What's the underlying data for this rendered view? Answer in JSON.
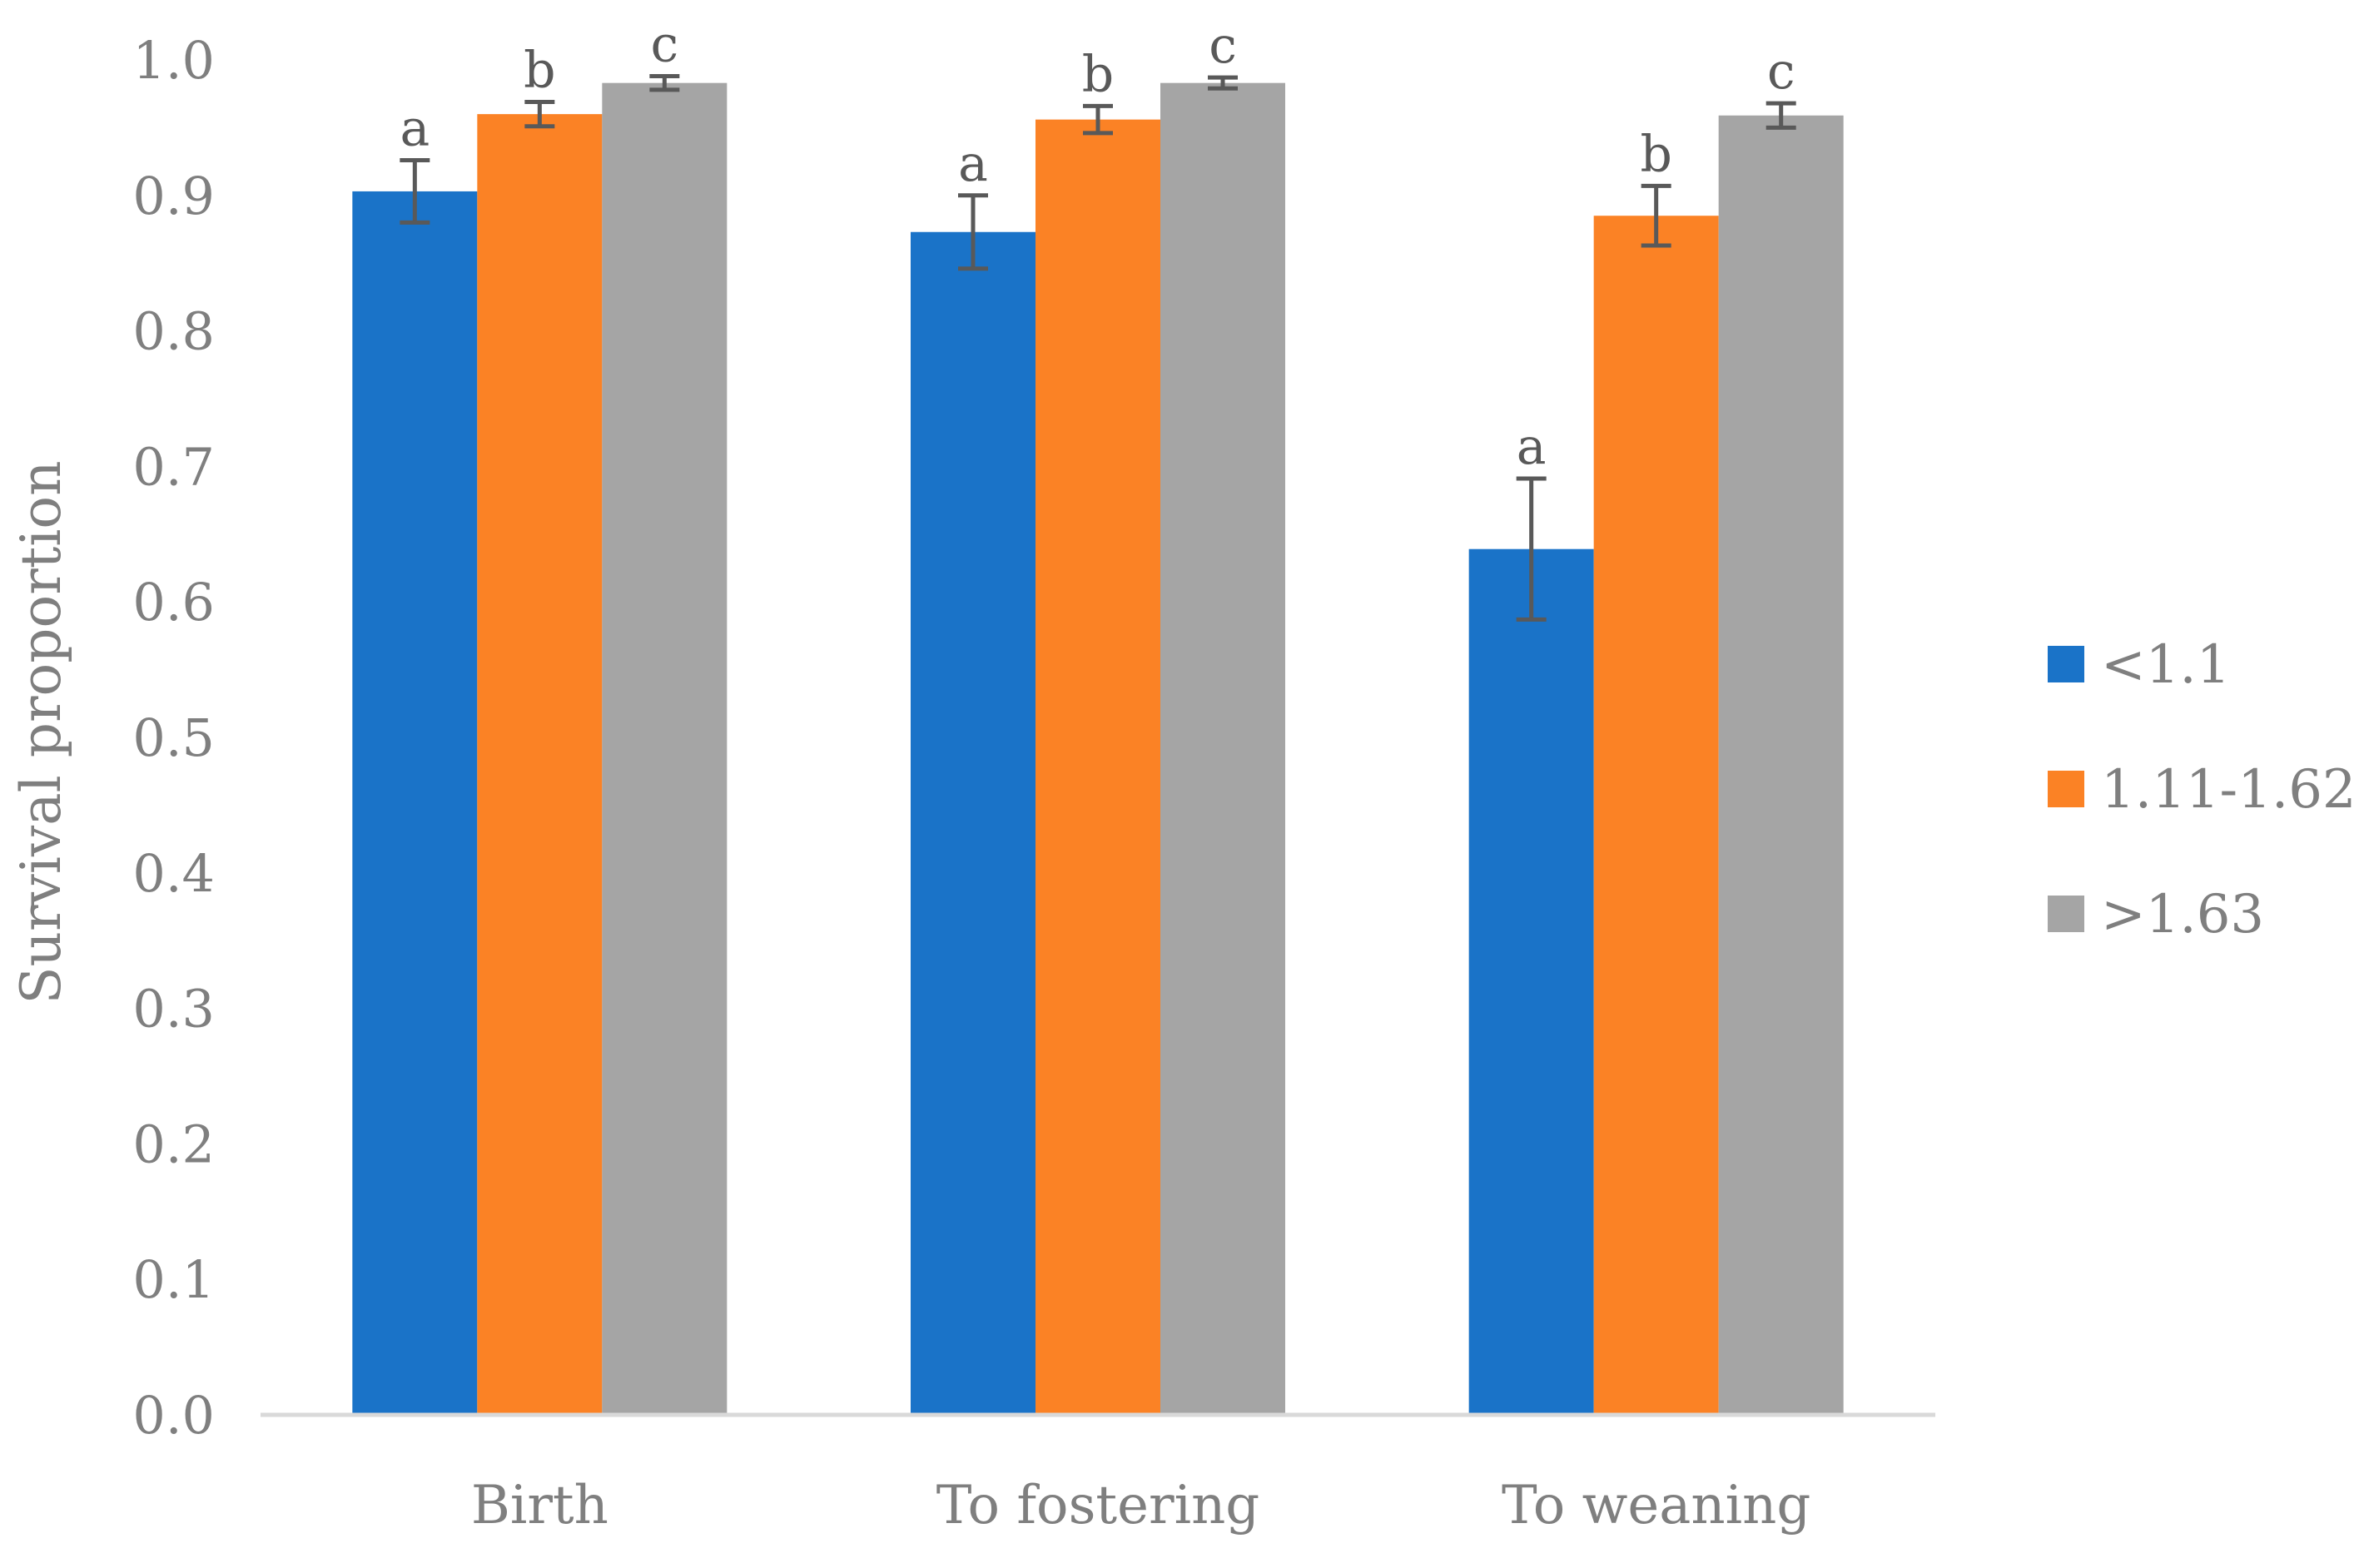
{
  "chart_data": {
    "type": "bar",
    "categories": [
      "Birth",
      "To fostering",
      "To weaning"
    ],
    "series": [
      {
        "name": "<1.1",
        "color": "#1a73c8",
        "values": [
          0.903,
          0.873,
          0.639
        ],
        "error": [
          0.023,
          0.027,
          0.052
        ],
        "letters": [
          "a",
          "a",
          "a"
        ]
      },
      {
        "name": "1.11-1.62",
        "color": "#fb8225",
        "values": [
          0.96,
          0.956,
          0.885
        ],
        "error": [
          0.009,
          0.01,
          0.022
        ],
        "letters": [
          "b",
          "b",
          "b"
        ]
      },
      {
        "name": ">1.63",
        "color": "#a5a5a5",
        "values": [
          0.983,
          0.983,
          0.959
        ],
        "error": [
          0.005,
          0.004,
          0.009
        ],
        "letters": [
          "c",
          "c",
          "c"
        ]
      }
    ],
    "ylabel": "Survival proportion",
    "xlabel": "",
    "ylim": [
      0,
      1.0
    ],
    "yticks": [
      "0.0",
      "0.1",
      "0.2",
      "0.3",
      "0.4",
      "0.5",
      "0.6",
      "0.7",
      "0.8",
      "0.9",
      "1.0"
    ],
    "grid": false,
    "legend_position": "right"
  }
}
